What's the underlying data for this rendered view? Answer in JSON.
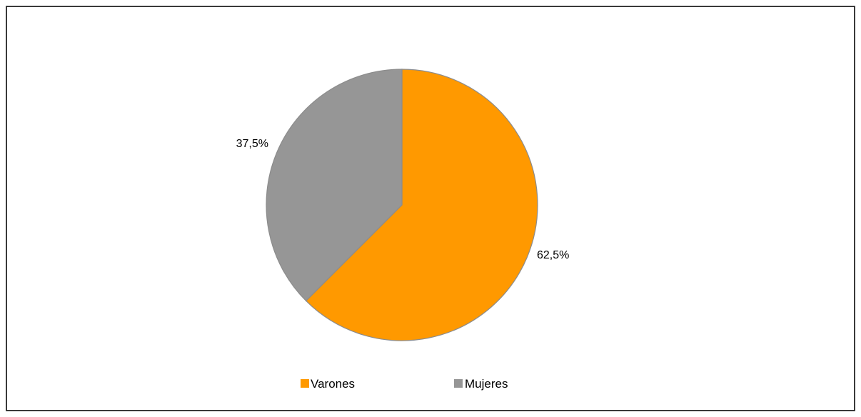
{
  "chart_data": {
    "type": "pie",
    "categories": [
      "Varones",
      "Mujeres"
    ],
    "values": [
      62.5,
      37.5
    ],
    "labels": [
      "62,5%",
      "37,5%"
    ],
    "colors": [
      "#ff9900",
      "#969696"
    ],
    "legend_position": "bottom",
    "title": ""
  }
}
